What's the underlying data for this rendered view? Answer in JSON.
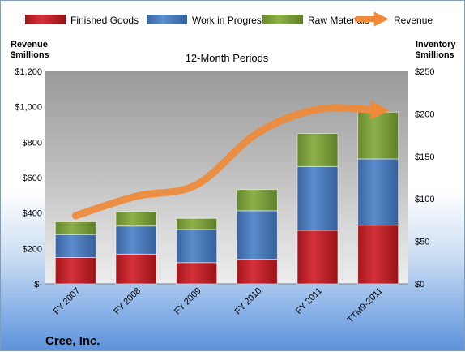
{
  "chart_data": {
    "type": "bar",
    "stacked": true,
    "subtitle": "12-Month Periods",
    "company": "Cree, Inc.",
    "categories": [
      "FY 2007",
      "FY 2008",
      "FY 2009",
      "FY 2010",
      "FY 2011",
      "TTM9-2011"
    ],
    "left_axis": {
      "title_line1": "Revenue",
      "title_line2": "$millions",
      "ylim": [
        0,
        1200
      ],
      "ticks": [
        0,
        200,
        400,
        600,
        800,
        1000,
        1200
      ],
      "tick_labels": [
        "$-",
        "$200",
        "$400",
        "$600",
        "$800",
        "$1,000",
        "$1,200"
      ]
    },
    "right_axis": {
      "title_line1": "Inventory",
      "title_line2": "$millions",
      "ylim": [
        0,
        250
      ],
      "ticks": [
        0,
        50,
        100,
        150,
        200,
        250
      ],
      "tick_labels": [
        "$0",
        "$50",
        "$100",
        "$150",
        "$200",
        "$250"
      ]
    },
    "series": [
      {
        "name": "Finished Goods",
        "axis": "right",
        "color": "#c0262c",
        "values": [
          31,
          35,
          25,
          29,
          63,
          69
        ]
      },
      {
        "name": "Work in Progress",
        "axis": "right",
        "color": "#4f7fc0",
        "values": [
          27,
          33,
          39,
          57,
          75,
          78
        ]
      },
      {
        "name": "Raw Materials",
        "axis": "right",
        "color": "#7da13b",
        "values": [
          15,
          17,
          13,
          25,
          39,
          55
        ]
      },
      {
        "name": "Revenue",
        "axis": "left",
        "type": "line",
        "color": "#ee8a3a",
        "values": [
          385,
          495,
          560,
          850,
          985,
          980
        ]
      }
    ],
    "legend_position": "top",
    "grid": false
  }
}
